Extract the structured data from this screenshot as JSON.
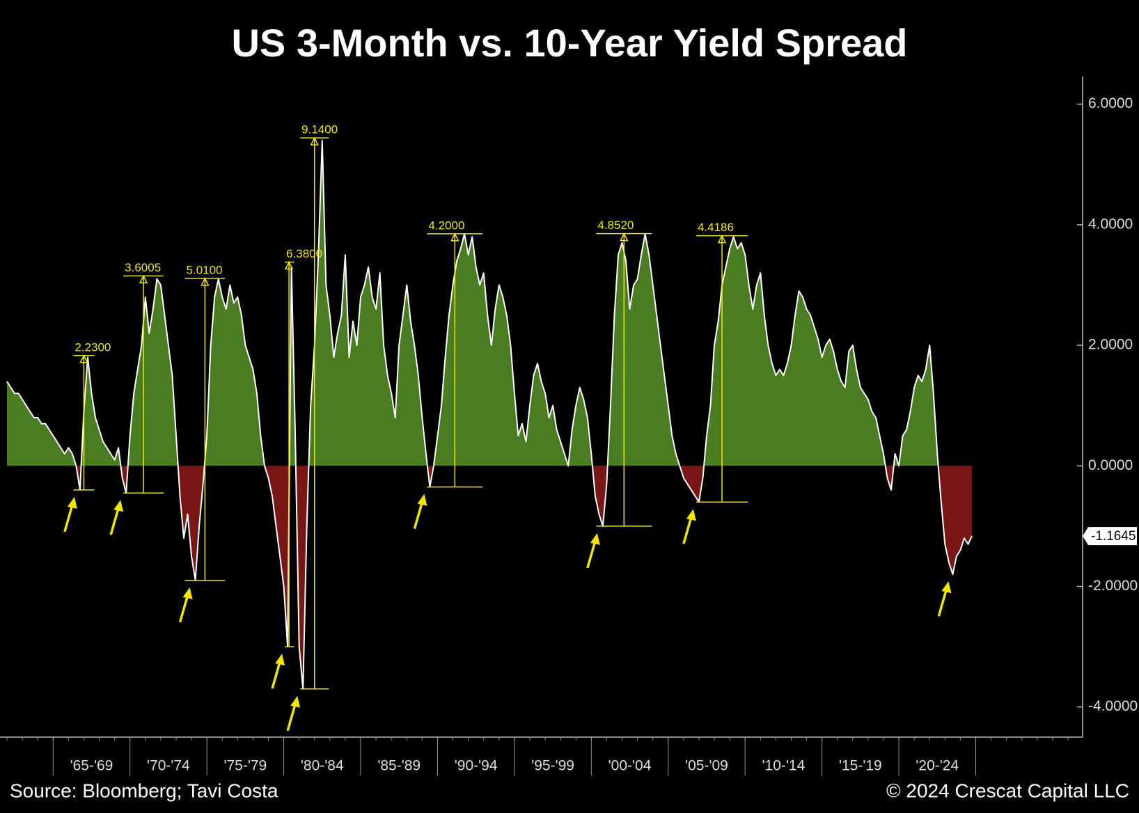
{
  "chart_data": {
    "type": "area",
    "title": "US 3-Month vs. 10-Year Yield Spread",
    "source": "Source: Bloomberg; Tavi Costa",
    "copyright": "© 2024 Crescat Capital LLC",
    "period_labels": [
      "'65-'69",
      "'70-'74",
      "'75-'79",
      "'80-'84",
      "'85-'89",
      "'90-'94",
      "'95-'99",
      "'00-'04",
      "'05-'09",
      "'10-'14",
      "'15-'19",
      "'20-'24"
    ],
    "values": [
      1.4,
      1.3,
      1.2,
      1.2,
      1.1,
      1.0,
      0.9,
      0.8,
      0.8,
      0.7,
      0.7,
      0.6,
      0.5,
      0.4,
      0.3,
      0.2,
      0.3,
      0.2,
      0.0,
      -0.4,
      0.9,
      1.8,
      1.2,
      0.8,
      0.6,
      0.4,
      0.3,
      0.2,
      0.1,
      0.3,
      -0.2,
      -0.45,
      0.5,
      1.2,
      1.6,
      2.0,
      2.8,
      2.2,
      2.6,
      3.1,
      3.0,
      2.5,
      2.0,
      1.5,
      0.5,
      -0.5,
      -1.2,
      -0.8,
      -1.5,
      -1.9,
      -1.0,
      -0.3,
      0.5,
      2.0,
      2.8,
      3.1,
      2.8,
      2.6,
      3.0,
      2.7,
      2.8,
      2.5,
      2.0,
      1.8,
      1.6,
      1.2,
      0.5,
      0.0,
      -0.2,
      -0.5,
      -1.0,
      -1.5,
      -2.0,
      -3.0,
      3.3,
      0.5,
      -3.0,
      -3.7,
      -1.0,
      1.0,
      2.0,
      3.5,
      5.4,
      3.0,
      2.5,
      1.8,
      2.2,
      2.5,
      3.5,
      1.8,
      2.4,
      2.0,
      2.8,
      3.0,
      3.3,
      2.8,
      2.6,
      3.2,
      2.0,
      1.5,
      1.2,
      0.8,
      2.0,
      2.5,
      3.0,
      2.4,
      2.0,
      1.5,
      0.8,
      0.2,
      -0.35,
      0.0,
      0.5,
      1.0,
      1.8,
      2.5,
      3.0,
      3.4,
      3.6,
      3.85,
      3.5,
      3.8,
      3.3,
      3.0,
      3.2,
      2.5,
      2.0,
      2.6,
      3.0,
      2.8,
      2.5,
      2.0,
      1.2,
      0.5,
      0.7,
      0.4,
      1.0,
      1.5,
      1.7,
      1.4,
      1.2,
      0.8,
      1.0,
      0.6,
      0.4,
      0.2,
      0.0,
      0.6,
      1.0,
      1.3,
      1.1,
      0.8,
      0.2,
      -0.5,
      -0.8,
      -1.0,
      -0.3,
      1.0,
      2.5,
      3.5,
      3.7,
      3.4,
      2.6,
      3.0,
      3.1,
      3.5,
      3.85,
      3.5,
      3.0,
      2.5,
      2.0,
      1.5,
      1.0,
      0.5,
      0.2,
      0.0,
      -0.2,
      -0.3,
      -0.4,
      -0.5,
      -0.6,
      -0.2,
      0.5,
      1.0,
      2.0,
      2.4,
      3.0,
      3.3,
      3.6,
      3.8,
      3.6,
      3.7,
      3.5,
      3.0,
      2.6,
      3.0,
      3.2,
      2.5,
      2.0,
      1.7,
      1.5,
      1.6,
      1.5,
      1.7,
      2.0,
      2.5,
      2.9,
      2.8,
      2.6,
      2.5,
      2.3,
      2.1,
      1.8,
      2.0,
      2.1,
      1.9,
      1.6,
      1.4,
      1.3,
      1.9,
      2.0,
      1.6,
      1.3,
      1.2,
      1.1,
      0.9,
      0.8,
      0.5,
      0.2,
      -0.2,
      -0.4,
      0.2,
      0.0,
      0.5,
      0.6,
      0.9,
      1.3,
      1.5,
      1.4,
      1.6,
      2.0,
      1.2,
      0.2,
      -0.6,
      -1.3,
      -1.6,
      -1.8,
      -1.5,
      -1.4,
      -1.2,
      -1.3,
      -1.1645
    ],
    "positive_color": "#4a7d22",
    "negative_color": "#7a1616",
    "line_color": "#ffffff",
    "annotation_color": "#f2e600",
    "annotations": [
      {
        "value": 2.23,
        "label": "2.2300"
      },
      {
        "value": 3.6005,
        "label": "3.6005"
      },
      {
        "value": 5.01,
        "label": "5.0100"
      },
      {
        "value": 6.38,
        "label": "6.3800"
      },
      {
        "value": 9.14,
        "label": "9.1400"
      },
      {
        "value": 4.2,
        "label": "4.2000"
      },
      {
        "value": 4.852,
        "label": "4.8520"
      },
      {
        "value": 4.4186,
        "label": "4.4186"
      }
    ],
    "ylim": [
      -4.5,
      6.4
    ],
    "yticks": [
      {
        "value": -4,
        "label": "-4.0000"
      },
      {
        "value": -2,
        "label": "-2.0000"
      },
      {
        "value": 0,
        "label": "0.0000"
      },
      {
        "value": 2,
        "label": "2.0000"
      },
      {
        "value": 4,
        "label": "4.0000"
      },
      {
        "value": 6,
        "label": "6.0000"
      }
    ],
    "y_axis_side": "right"
  }
}
